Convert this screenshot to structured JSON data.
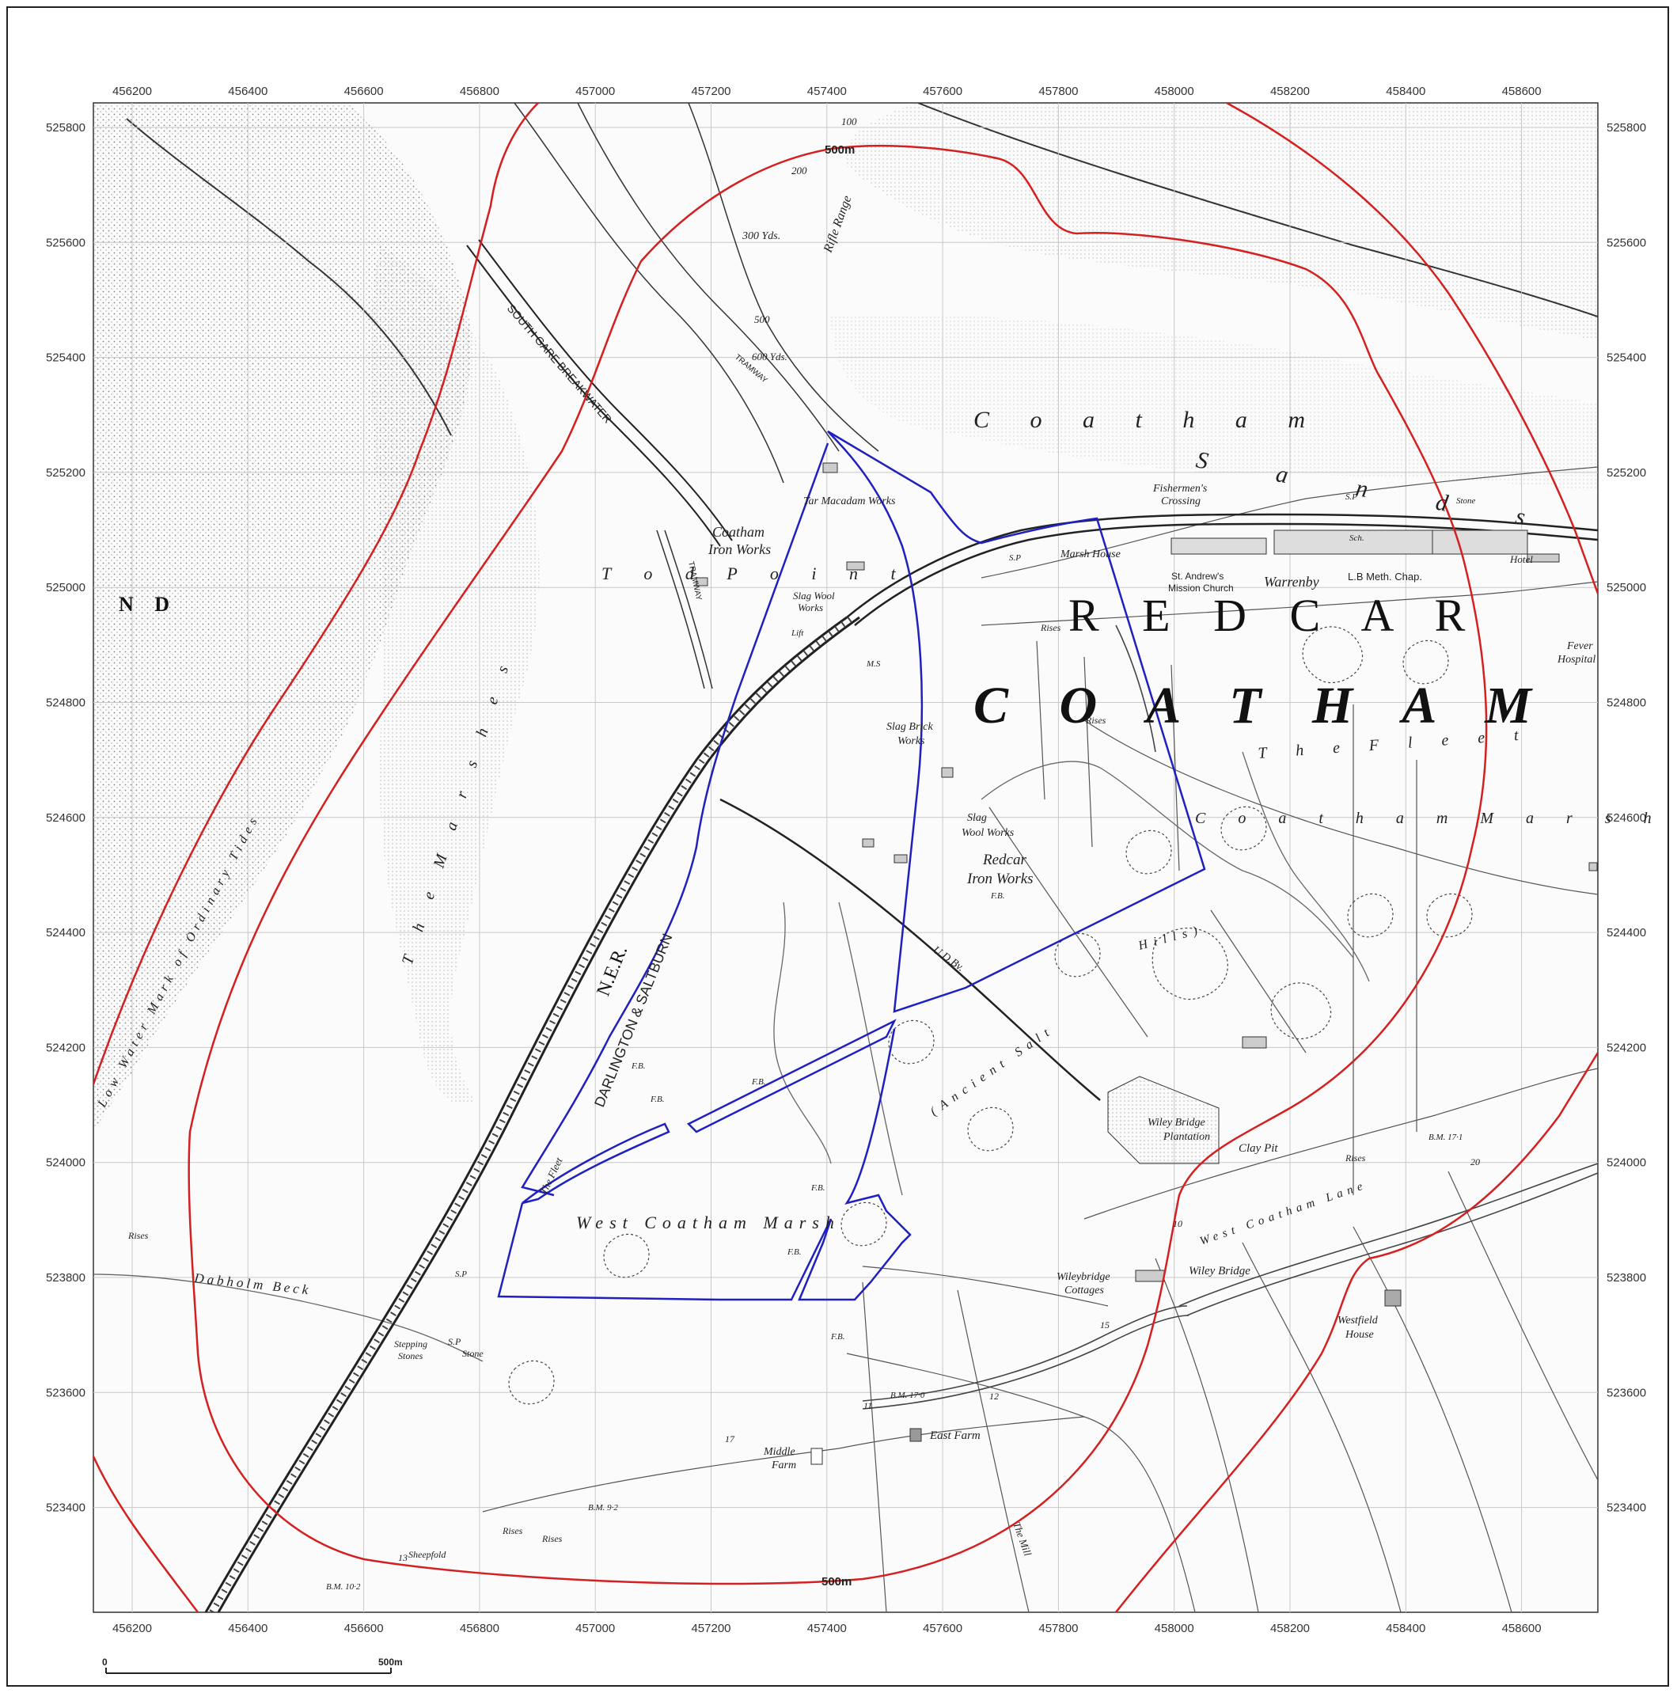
{
  "grid": {
    "x_ticks": [
      "456200",
      "456400",
      "456600",
      "456800",
      "457000",
      "457200",
      "457400",
      "457600",
      "457800",
      "458000",
      "458200",
      "458400",
      "458600"
    ],
    "y_ticks": [
      "525800",
      "525600",
      "525400",
      "525200",
      "525000",
      "524800",
      "524600",
      "524400",
      "524200",
      "524000",
      "523800",
      "523600",
      "523400"
    ]
  },
  "buffer": {
    "label_top": "500m",
    "label_bottom": "500m",
    "color": "#d42020"
  },
  "site_boundary": {
    "color": "#2020c0"
  },
  "scale_bar": {
    "start": "0",
    "end": "500m"
  },
  "labels": {
    "redcar": "R E D C A R",
    "coatham": "C O A T H A M",
    "coatham_sands": "C o a t h a m",
    "coatham_sands2": "S a n d s",
    "coatham_marsh": "C o a t h a m   M a r s h",
    "the_fleet": "T h e   F l e e t",
    "tod_point": "T o d   P o i n t",
    "nd": "N D",
    "the_marshes": "T h e   M a r s h e s",
    "south_gare": "SOUTH GARE BREAKWATER",
    "ner": "N.E.R.",
    "darlington": "DARLINGTON & SALTBURN",
    "west_coatham_marsh": "West Coatham Marsh",
    "coatham_iron_works": "Coatham",
    "coatham_iron_works2": "Iron Works",
    "redcar_iron_works": "Redcar",
    "redcar_iron_works2": "Iron Works",
    "slag_wool_works": "Slag Wool",
    "slag_wool_works2": "Works",
    "slag_wool_works_b": "Slag",
    "slag_wool_works_b2": "Wool Works",
    "slag_brick_works": "Slag Brick",
    "slag_brick_works2": "Works",
    "tar_macadam": "Tar Macadam Works",
    "fishermens": "Fishermen's",
    "fishermens2": "Crossing",
    "marsh_house": "Marsh House",
    "st_andrews": "St. Andrew's",
    "st_andrews2": "Mission Church",
    "warrenby": "Warrenby",
    "meth_chap": "L.B  Meth. Chap.",
    "hotel": "Hotel",
    "fever_hospital": "Fever",
    "fever_hospital2": "Hospital",
    "rifle_range": "Rifle Range",
    "yds300": "300 Yds.",
    "yds600": "600 Yds.",
    "n100": "100",
    "n200": "200",
    "n500": "500",
    "tramway": "TRAMWAY",
    "tramway2": "TRAMWAY",
    "wiley_bridge_plant": "Wiley Bridge",
    "wiley_bridge_plant2": "Plantation",
    "clay_pit": "Clay Pit",
    "wiley_bridge": "Wiley Bridge",
    "wileybridge_cottages": "Wileybridge",
    "wileybridge_cottages2": "Cottages",
    "west_coatham_lane": "West  Coatham  Lane",
    "westfield_house": "Westfield",
    "westfield_house2": "House",
    "east_farm": "East Farm",
    "middle_farm": "Middle",
    "middle_farm2": "Farm",
    "dabholm_beck": "Dabholm  Beck",
    "stepping_stones": "Stepping",
    "stepping_stones2": "Stones",
    "sp_stone": "S.P",
    "sp_stone2": "Stone",
    "sheepfold": "Sheepfold",
    "the_mill": "The Mill",
    "ancient_salt_hills": "(Ancient  Salt",
    "hills": "Hills)",
    "low_water": "Low Water Mark of Ordinary Tides",
    "rises1": "Rises",
    "rises2": "Rises",
    "rises3": "Rises",
    "rises4": "Rises",
    "rises5": "Rises",
    "rises6": "Rises",
    "bm_17_1": "B.M. 17·1",
    "bm_17_0": "B.M. 17·0",
    "bm_9_2": "B.M. 9·2",
    "bm_10_2": "B.M. 10·2",
    "ud_bv": "U.D.Bv.",
    "fb1": "F.B.",
    "fb2": "F.B.",
    "fb3": "F.B.",
    "fb4": "F.B.",
    "fb5": "F.B.",
    "fb6": "F.B.",
    "fb7": "F.B.",
    "ms": "M.S",
    "sp1": "S.P",
    "sp2": "S.P",
    "sp3": "S.P",
    "sch": "Sch.",
    "stone": "Stone",
    "lift": "Lift",
    "the_fleet_small": "The Fleet",
    "num_20": "20",
    "num_15": "15",
    "num_12": "12",
    "num_13": "13",
    "num_17": "17",
    "num_11": "11",
    "num_10": "10"
  }
}
